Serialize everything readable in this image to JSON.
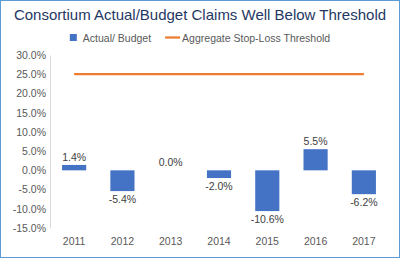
{
  "chart_data": {
    "type": "bar",
    "title": "Consortium Actual/Budget Claims Well Below Threshold",
    "categories": [
      "2011",
      "2012",
      "2013",
      "2014",
      "2015",
      "2016",
      "2017"
    ],
    "series": [
      {
        "name": "Actual/ Budget",
        "type": "bar",
        "color": "#4472c4",
        "values": [
          1.4,
          -5.4,
          0.0,
          -2.0,
          -10.6,
          5.5,
          -6.2
        ],
        "value_labels": [
          "1.4%",
          "-5.4%",
          "0.0%",
          "-2.0%",
          "-10.6%",
          "5.5%",
          "-6.2%"
        ],
        "data_labels": true
      },
      {
        "name": "Aggregate Stop-Loss Threshold",
        "type": "line",
        "color": "#ed7d31",
        "values": [
          25,
          25,
          25,
          25,
          25,
          25,
          25
        ]
      }
    ],
    "ylim": [
      -15,
      30
    ],
    "yticks": [
      {
        "value": -15,
        "label": "-15.0%"
      },
      {
        "value": -10,
        "label": "-10.0%"
      },
      {
        "value": -5,
        "label": "-5.0%"
      },
      {
        "value": 0,
        "label": "0.0%"
      },
      {
        "value": 5,
        "label": "5.0%"
      },
      {
        "value": 10,
        "label": "10.0%"
      },
      {
        "value": 15,
        "label": "15.0%"
      },
      {
        "value": 20,
        "label": "20.0%"
      },
      {
        "value": 25,
        "label": "25.0%"
      },
      {
        "value": 30,
        "label": "30.0%"
      }
    ],
    "grid": false,
    "legend": "top"
  }
}
